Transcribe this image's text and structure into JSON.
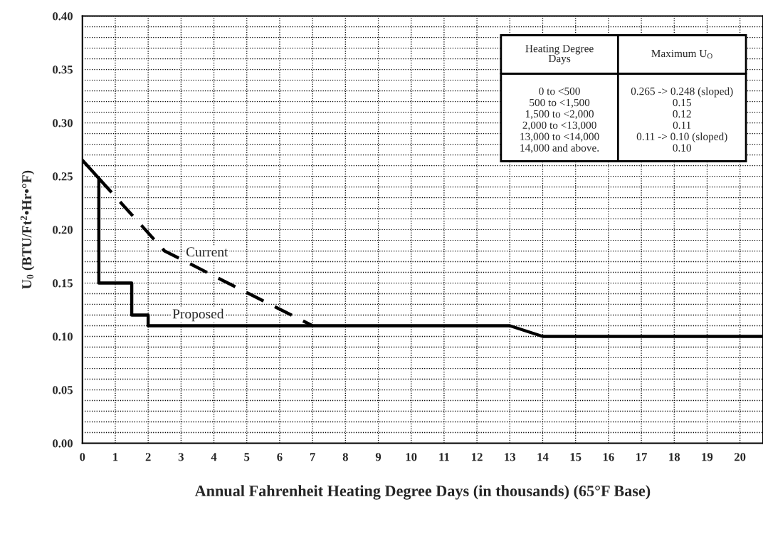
{
  "chart_data": {
    "type": "line",
    "xlabel": "Annual Fahrenheit Heating Degree Days (in thousands) (65°F Base)",
    "ylabel": "U$_{0}$ (BTU/Ft$^{2}$•Hr•°F)",
    "xlim": [
      0,
      20.7
    ],
    "xticks": [
      0,
      1,
      2,
      3,
      4,
      5,
      6,
      7,
      8,
      9,
      10,
      11,
      12,
      13,
      14,
      15,
      16,
      17,
      18,
      19,
      20
    ],
    "ylim": [
      0,
      0.4
    ],
    "yticks": [
      {
        "value": 0.0,
        "label": "0.00"
      },
      {
        "value": 0.01,
        "label": null
      },
      {
        "value": 0.02,
        "label": null
      },
      {
        "value": 0.03,
        "label": null
      },
      {
        "value": 0.04,
        "label": null
      },
      {
        "value": 0.05,
        "label": "0.05"
      },
      {
        "value": 0.06,
        "label": null
      },
      {
        "value": 0.07,
        "label": null
      },
      {
        "value": 0.08,
        "label": null
      },
      {
        "value": 0.09,
        "label": null
      },
      {
        "value": 0.1,
        "label": "0.10"
      },
      {
        "value": 0.11,
        "label": null
      },
      {
        "value": 0.12,
        "label": null
      },
      {
        "value": 0.13,
        "label": null
      },
      {
        "value": 0.14,
        "label": null
      },
      {
        "value": 0.15,
        "label": "0.15"
      },
      {
        "value": 0.16,
        "label": null
      },
      {
        "value": 0.17,
        "label": null
      },
      {
        "value": 0.18,
        "label": null
      },
      {
        "value": 0.19,
        "label": null
      },
      {
        "value": 0.2,
        "label": "0.20"
      },
      {
        "value": 0.21,
        "label": null
      },
      {
        "value": 0.22,
        "label": null
      },
      {
        "value": 0.23,
        "label": null
      },
      {
        "value": 0.24,
        "label": null
      },
      {
        "value": 0.25,
        "label": "0.25"
      },
      {
        "value": 0.26,
        "label": null
      },
      {
        "value": 0.27,
        "label": null
      },
      {
        "value": 0.28,
        "label": null
      },
      {
        "value": 0.29,
        "label": null
      },
      {
        "value": 0.3,
        "label": "0.30"
      },
      {
        "value": 0.31,
        "label": null
      },
      {
        "value": 0.32,
        "label": null
      },
      {
        "value": 0.33,
        "label": null
      },
      {
        "value": 0.34,
        "label": null
      },
      {
        "value": 0.35,
        "label": "0.35"
      },
      {
        "value": 0.36,
        "label": null
      },
      {
        "value": 0.37,
        "label": null
      },
      {
        "value": 0.38,
        "label": null
      },
      {
        "value": 0.39,
        "label": null
      },
      {
        "value": 0.4,
        "label": "0.40"
      }
    ],
    "grid": true,
    "series": [
      {
        "name": "Proposed",
        "color": "#000000",
        "line_style": "solid",
        "x": [
          0,
          0.5,
          0.5,
          1.5,
          1.5,
          2,
          2,
          13,
          14,
          20.7
        ],
        "values": [
          0.265,
          0.248,
          0.15,
          0.15,
          0.12,
          0.12,
          0.11,
          0.11,
          0.1,
          0.1
        ]
      },
      {
        "name": "Current",
        "color": "#000000",
        "line_style": "dashed",
        "x": [
          0.5,
          2.5,
          7
        ],
        "values": [
          0.248,
          0.18,
          0.11
        ]
      }
    ],
    "annotations": [
      "Heating Degree\nDays",
      "Maximum U$_{O}$",
      "0 to <500",
      "0.265 -> 0.248 (sloped)",
      "500 to <1,500",
      "0.15",
      "1,500 to <2,000",
      "0.12",
      "2,000 to <13,000",
      "0.11",
      "13,000 to <14,000",
      "0.11 -> 0.10 (sloped)",
      "14,000 and above.",
      "0.10"
    ]
  }
}
